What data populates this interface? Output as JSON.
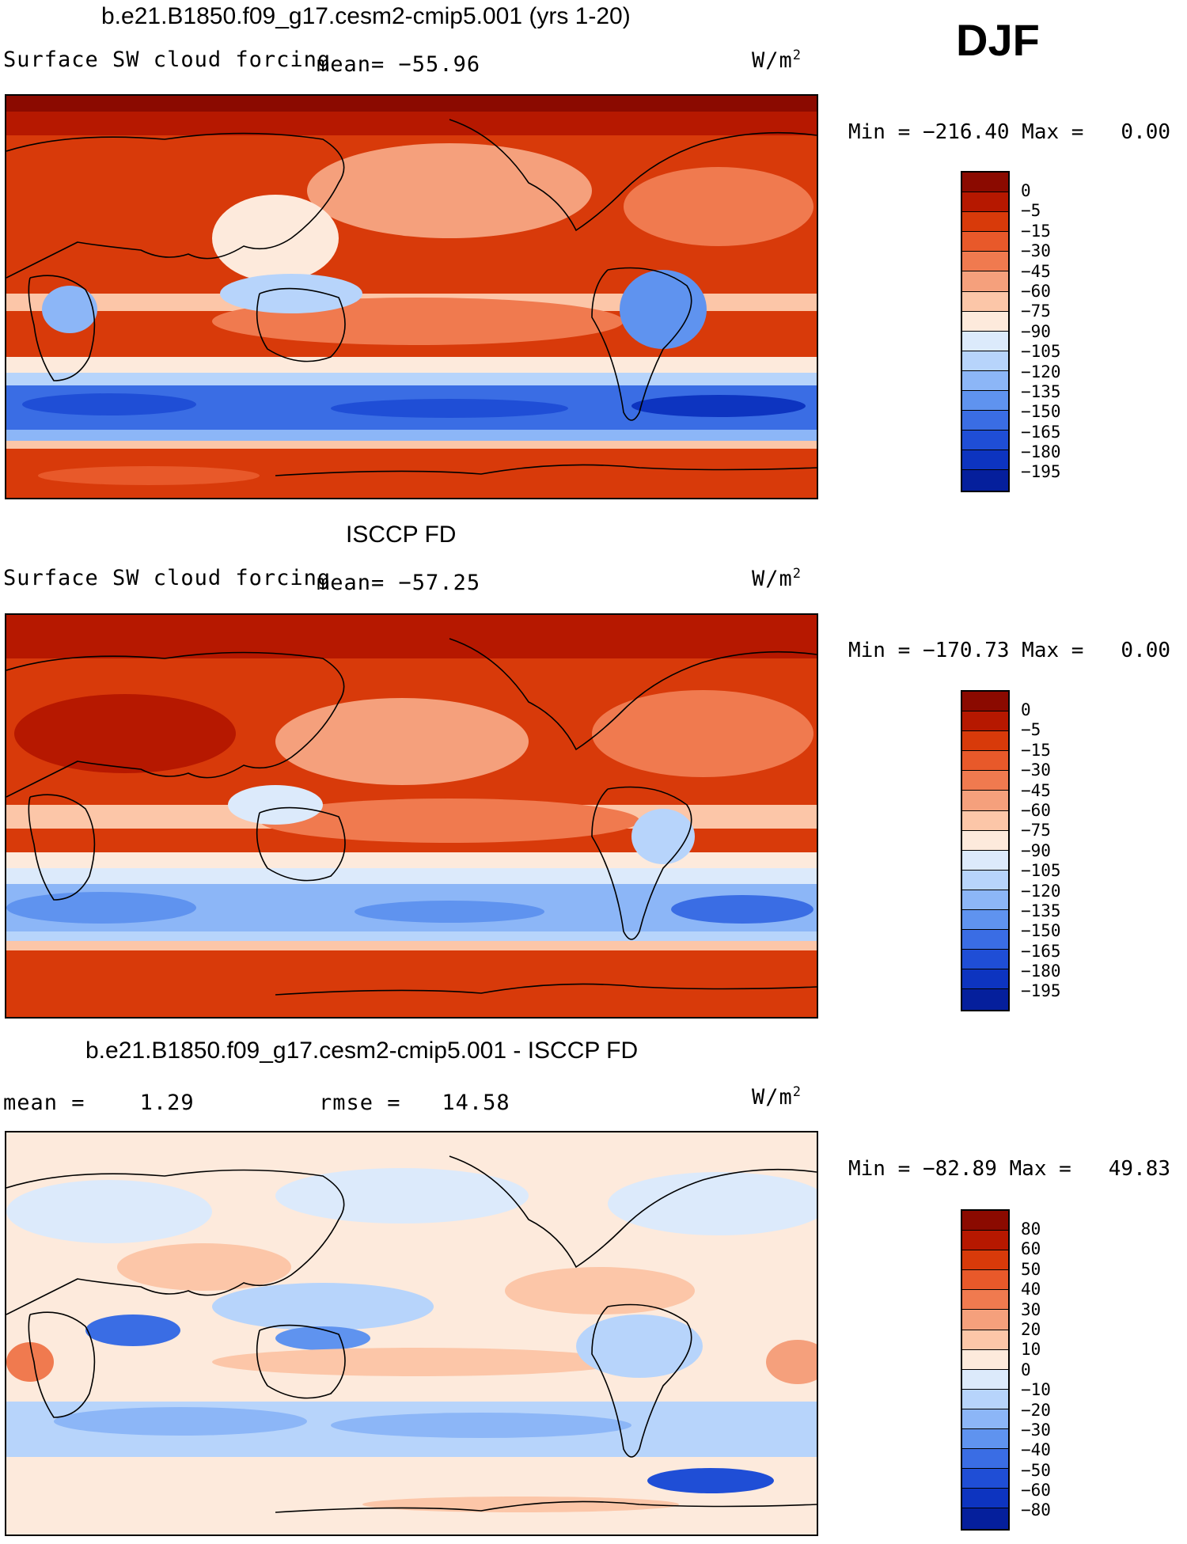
{
  "season": "DJF",
  "panels": [
    {
      "title": "b.e21.B1850.f09_g17.cesm2-cmip5.001 (yrs 1-20)",
      "variable": "Surface SW cloud forcing",
      "mean_label": "mean=",
      "mean_value": "−55.96",
      "units": "W/m",
      "units_exp": "2",
      "min_label": "Min",
      "min_value": "−216.40",
      "max_label": "Max",
      "max_value": "0.00",
      "colorbar": {
        "colors": [
          "#8b0a00",
          "#b61800",
          "#d83a0a",
          "#e8592a",
          "#f07a4f",
          "#f5a07c",
          "#fcc6a8",
          "#fdeadc",
          "#dceafb",
          "#b7d4fb",
          "#8cb6f7",
          "#5f93ef",
          "#3a6de4",
          "#1f4ed6",
          "#0d34c0",
          "#051f9c",
          "#020c6c"
        ],
        "labels": [
          "0",
          "−5",
          "−15",
          "−30",
          "−45",
          "−60",
          "−75",
          "−90",
          "−105",
          "−120",
          "−135",
          "−150",
          "−165",
          "−180",
          "−195"
        ]
      }
    },
    {
      "title": "ISCCP FD",
      "variable": "Surface SW cloud forcing",
      "mean_label": "mean=",
      "mean_value": "−57.25",
      "units": "W/m",
      "units_exp": "2",
      "min_label": "Min",
      "min_value": "−170.73",
      "max_label": "Max",
      "max_value": "0.00",
      "colorbar": {
        "colors": [
          "#8b0a00",
          "#b61800",
          "#d83a0a",
          "#e8592a",
          "#f07a4f",
          "#f5a07c",
          "#fcc6a8",
          "#fdeadc",
          "#dceafb",
          "#b7d4fb",
          "#8cb6f7",
          "#5f93ef",
          "#3a6de4",
          "#1f4ed6",
          "#0d34c0",
          "#051f9c",
          "#020c6c"
        ],
        "labels": [
          "0",
          "−5",
          "−15",
          "−30",
          "−45",
          "−60",
          "−75",
          "−90",
          "−105",
          "−120",
          "−135",
          "−150",
          "−165",
          "−180",
          "−195"
        ]
      }
    },
    {
      "title": "b.e21.B1850.f09_g17.cesm2-cmip5.001 - ISCCP FD",
      "mean_label": "mean =",
      "mean_value": "1.29",
      "rmse_label": "rmse =",
      "rmse_value": "14.58",
      "units": "W/m",
      "units_exp": "2",
      "min_label": "Min",
      "min_value": "−82.89",
      "max_label": "Max",
      "max_value": "49.83",
      "colorbar": {
        "colors": [
          "#8b0a00",
          "#b61800",
          "#d83a0a",
          "#e8592a",
          "#f07a4f",
          "#f5a07c",
          "#fcc6a8",
          "#fdeadc",
          "#dceafb",
          "#b7d4fb",
          "#8cb6f7",
          "#5f93ef",
          "#3a6de4",
          "#1f4ed6",
          "#0d34c0",
          "#051f9c",
          "#020c6c"
        ],
        "labels": [
          "80",
          "60",
          "50",
          "40",
          "30",
          "20",
          "10",
          "0",
          "−10",
          "−20",
          "−30",
          "−40",
          "−50",
          "−60",
          "−80"
        ]
      }
    }
  ]
}
